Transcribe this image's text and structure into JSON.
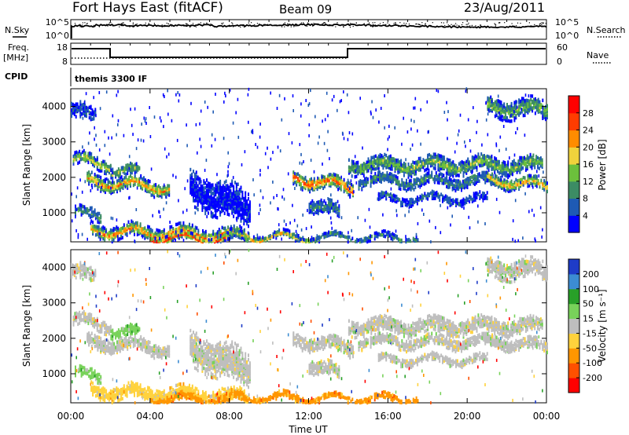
{
  "header": {
    "title": "Fort Hays East (fitACF)",
    "beam": "Beam 09",
    "date": "23/Aug/2011"
  },
  "top_panels": {
    "nsky_label": "N.Sky",
    "nsky_ticks": [
      "10^5",
      "10^0"
    ],
    "nsearch_label": "N.Search",
    "nsearch_ticks": [
      "10^5",
      "10^0"
    ],
    "freq_label": "Freq.",
    "freq_unit": "[MHz]",
    "freq_ticks": [
      "18",
      "8"
    ],
    "nave_label": "Nave",
    "nave_ticks": [
      "60",
      "0"
    ],
    "cpid_label": "CPID",
    "cpid_value": "themis 3300 IF"
  },
  "chart_data": [
    {
      "type": "heatmap",
      "name": "power-panel",
      "ylabel": "Slant Range [km]",
      "ylim": [
        180,
        4500
      ],
      "yticks": [
        "1000",
        "2000",
        "3000",
        "4000"
      ],
      "colorbar_label": "Power [dB]",
      "colorbar_ticks": [
        "4",
        "8",
        "12",
        "16",
        "20",
        "24",
        "28"
      ],
      "colorbar_colors": [
        "#0000ff",
        "#1e5ab4",
        "#3c8c64",
        "#6cc03c",
        "#f0d23c",
        "#ff8c00",
        "#ff3c00",
        "#ff0000"
      ]
    },
    {
      "type": "heatmap",
      "name": "velocity-panel",
      "xlabel": "Time UT",
      "ylabel": "Slant Range [km]",
      "xticks": [
        "00:00",
        "04:00",
        "08:00",
        "12:00",
        "16:00",
        "20:00",
        "00:00"
      ],
      "ylim": [
        180,
        4500
      ],
      "yticks": [
        "1000",
        "2000",
        "3000",
        "4000"
      ],
      "colorbar_label": "Velocity [m s⁻¹]",
      "colorbar_ticks": [
        "200",
        "100",
        "50",
        "15",
        "-15",
        "-50",
        "-100",
        "-200"
      ],
      "colorbar_colors": [
        "#1e3cc8",
        "#3c8cd2",
        "#28a028",
        "#78d25a",
        "#bebebe",
        "#ffd23c",
        "#ff9600",
        "#ff5000",
        "#ff0000"
      ]
    }
  ]
}
